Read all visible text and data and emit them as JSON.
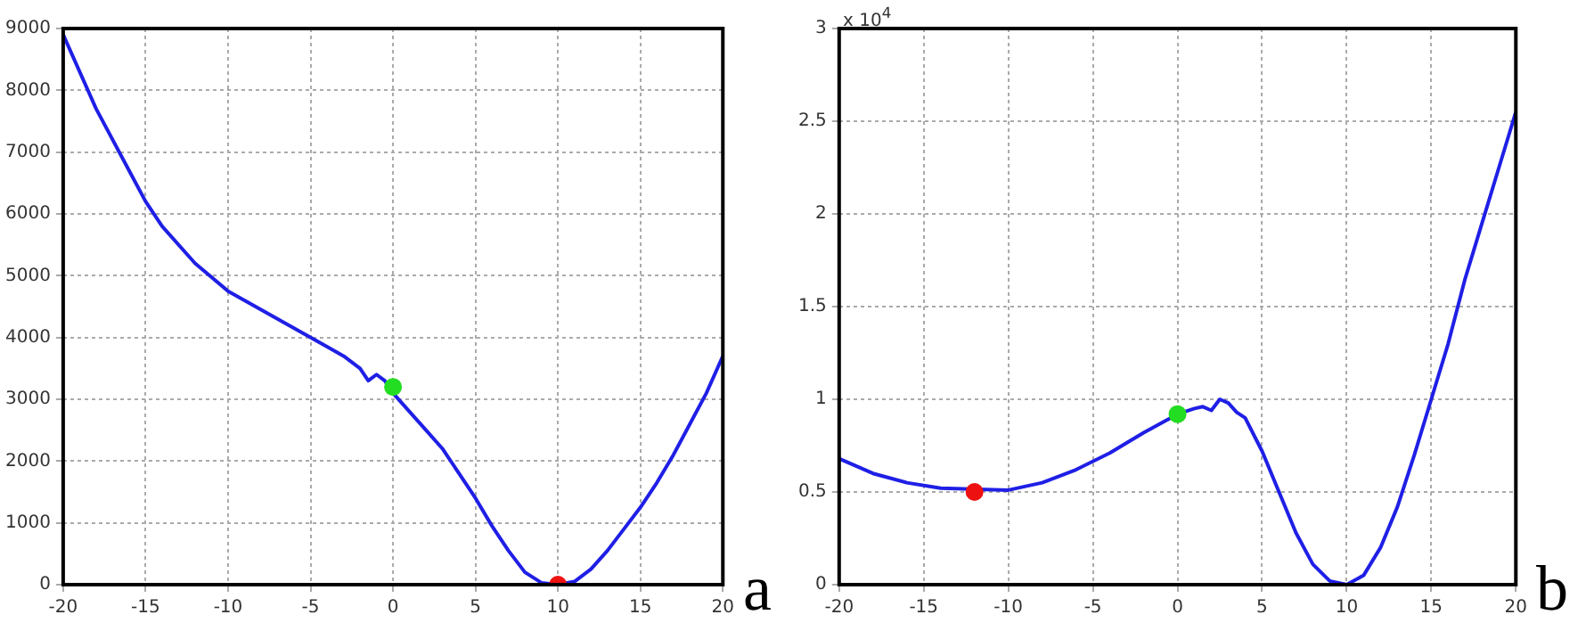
{
  "chart_data": [
    {
      "type": "line",
      "annotations": [
        "a"
      ],
      "xlim": [
        -20,
        20
      ],
      "xticks": [
        -20,
        -15,
        -10,
        -5,
        0,
        5,
        10,
        15,
        20
      ],
      "ylim": [
        0,
        9000
      ],
      "yticks": [
        0,
        1000,
        2000,
        3000,
        4000,
        5000,
        6000,
        7000,
        8000,
        9000
      ],
      "grid": true,
      "series": [
        {
          "type": "line",
          "color": "#1f1fe6",
          "marker": "none",
          "x": [
            -20,
            -18,
            -16,
            -15,
            -14,
            -12,
            -10,
            -8,
            -6,
            -4,
            -3,
            -2,
            -1.5,
            -1,
            -0.5,
            0,
            1,
            2,
            3,
            4,
            5,
            6,
            7,
            8,
            9,
            10,
            11,
            12,
            13,
            14,
            15,
            16,
            17,
            18,
            19,
            20
          ],
          "values": [
            8900,
            7700,
            6700,
            6200,
            5800,
            5200,
            4750,
            4450,
            4150,
            3850,
            3700,
            3500,
            3300,
            3400,
            3300,
            3100,
            2800,
            2500,
            2200,
            1800,
            1400,
            950,
            550,
            200,
            30,
            0,
            50,
            250,
            550,
            900,
            1250,
            1650,
            2100,
            2600,
            3100,
            3700
          ]
        },
        {
          "type": "scatter",
          "color": "#22dd22",
          "marker": "circle",
          "x": [
            0
          ],
          "values": [
            3200
          ]
        },
        {
          "type": "scatter",
          "color": "#ee1111",
          "marker": "circle",
          "x": [
            10
          ],
          "values": [
            0
          ]
        }
      ]
    },
    {
      "type": "line",
      "annotations": [
        "x 10$^{4}$",
        "b"
      ],
      "xlim": [
        -20,
        20
      ],
      "xticks": [
        -20,
        -15,
        -10,
        -5,
        0,
        5,
        10,
        15,
        20
      ],
      "ylim": [
        0,
        3
      ],
      "yticks": [
        0,
        0.5,
        1,
        1.5,
        2,
        2.5,
        3
      ],
      "grid": true,
      "series": [
        {
          "type": "line",
          "color": "#1f1fe6",
          "marker": "none",
          "x": [
            -20,
            -18,
            -16,
            -14,
            -10,
            -8,
            -6,
            -4,
            -2,
            0,
            1,
            1.5,
            2,
            2.5,
            3,
            3.5,
            4,
            5,
            6,
            7,
            8,
            9,
            10,
            11,
            12,
            13,
            14,
            15,
            16,
            17,
            18,
            19,
            20
          ],
          "values": [
            0.68,
            0.6,
            0.55,
            0.52,
            0.51,
            0.55,
            0.62,
            0.71,
            0.82,
            0.92,
            0.95,
            0.96,
            0.94,
            1.0,
            0.98,
            0.93,
            0.9,
            0.72,
            0.5,
            0.28,
            0.11,
            0.02,
            0,
            0.05,
            0.2,
            0.42,
            0.7,
            1.0,
            1.3,
            1.65,
            1.95,
            2.25,
            2.55
          ]
        },
        {
          "type": "scatter",
          "color": "#22dd22",
          "marker": "circle",
          "x": [
            0
          ],
          "values": [
            0.92
          ]
        },
        {
          "type": "scatter",
          "color": "#ee1111",
          "marker": "circle",
          "x": [
            -12
          ],
          "values": [
            0.5
          ]
        }
      ]
    }
  ]
}
